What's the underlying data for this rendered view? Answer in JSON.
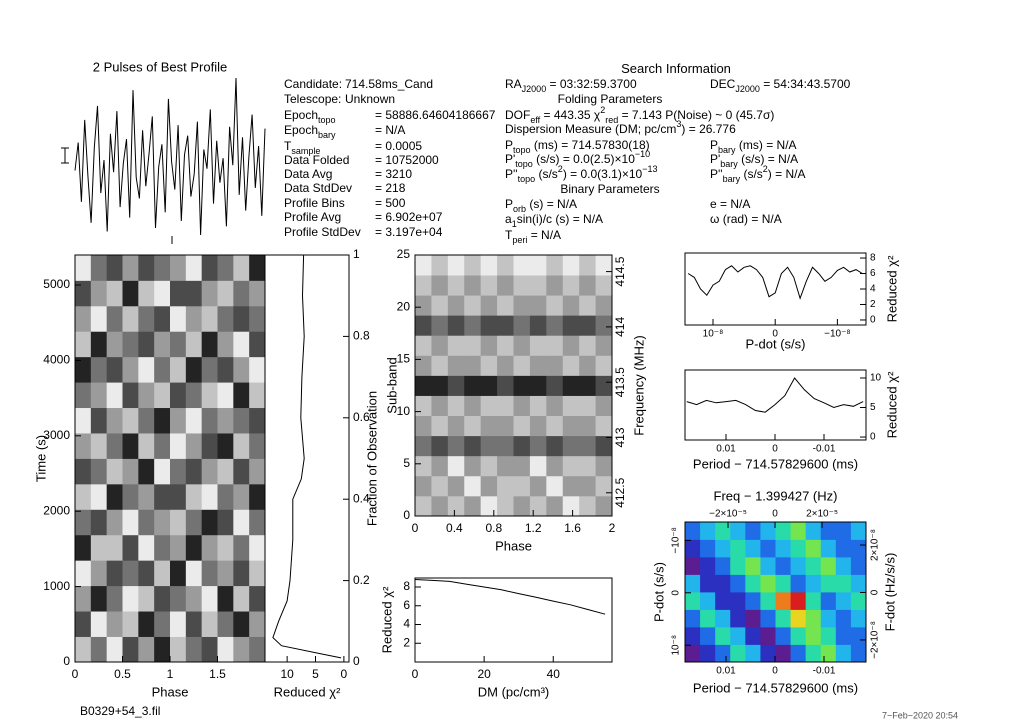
{
  "info": {
    "left": [
      {
        "segments": [
          {
            "text": "Candidate:"
          }
        ],
        "value": "714.58ms_Cand"
      },
      {
        "segments": [
          {
            "text": "Telescope:"
          }
        ],
        "value": "Unknown"
      },
      {
        "segments": [
          {
            "text": "Epoch"
          },
          {
            "sub": "topo"
          }
        ],
        "value": "= 58886.64604186667"
      },
      {
        "segments": [
          {
            "text": "Epoch"
          },
          {
            "sub": "bary"
          }
        ],
        "value": "= N/A"
      },
      {
        "segments": [
          {
            "text": "T"
          },
          {
            "sub": "sample"
          }
        ],
        "value": "= 0.0005"
      },
      {
        "segments": [
          {
            "text": "Data Folded"
          }
        ],
        "value": "= 10752000"
      },
      {
        "segments": [
          {
            "text": "Data Avg"
          }
        ],
        "value": "= 3210"
      },
      {
        "segments": [
          {
            "text": "Data StdDev"
          }
        ],
        "value": "= 218"
      },
      {
        "segments": [
          {
            "text": "Profile Bins"
          }
        ],
        "value": "= 500"
      },
      {
        "segments": [
          {
            "text": "Profile Avg"
          }
        ],
        "value": "= 6.902e+07"
      },
      {
        "segments": [
          {
            "text": "Profile StdDev"
          }
        ],
        "value": "= 3.197e+04"
      }
    ],
    "search": [
      {
        "segments": [
          {
            "text": "Search Information"
          }
        ]
      },
      {
        "segments": [
          {
            "text": "RA"
          },
          {
            "sub": "J2000"
          },
          {
            "text": " = 03:32:59.3700"
          }
        ]
      },
      {
        "segments": [
          {
            "text": "DEC"
          },
          {
            "sub": "J2000"
          },
          {
            "text": " = 54:34:43.5700"
          }
        ]
      },
      {
        "segments": [
          {
            "text": "Folding Parameters"
          }
        ]
      },
      {
        "segments": [
          {
            "text": "DOF"
          },
          {
            "sub": "eff"
          },
          {
            "text": " = 443.35  χ"
          },
          {
            "sup": "2"
          },
          {
            "sub": "red"
          },
          {
            "text": " = 7.143  P(Noise) ~ 0   (45.7σ)"
          }
        ]
      },
      {
        "segments": [
          {
            "text": "Dispersion Measure (DM; pc/cm"
          },
          {
            "sup": "3"
          },
          {
            "text": ") = 26.776"
          }
        ]
      },
      {
        "segments": [
          {
            "text": "P"
          },
          {
            "sub": "topo"
          },
          {
            "text": " (ms) = 714.57830(18)"
          }
        ]
      },
      {
        "segments": [
          {
            "text": "P"
          },
          {
            "sub": "bary"
          },
          {
            "text": " (ms) = N/A"
          }
        ]
      },
      {
        "segments": [
          {
            "text": "P'"
          },
          {
            "sub": "topo"
          },
          {
            "text": " (s/s) = 0.0(2.5)×10"
          },
          {
            "sup": "−10"
          }
        ]
      },
      {
        "segments": [
          {
            "text": "P'"
          },
          {
            "sub": "bary"
          },
          {
            "text": " (s/s) = N/A"
          }
        ]
      },
      {
        "segments": [
          {
            "text": "P''"
          },
          {
            "sub": "topo"
          },
          {
            "text": " (s/s"
          },
          {
            "sup": "2"
          },
          {
            "text": ") = 0.0(3.1)×10"
          },
          {
            "sup": "−13"
          }
        ]
      },
      {
        "segments": [
          {
            "text": "P''"
          },
          {
            "sub": "bary"
          },
          {
            "text": " (s/s"
          },
          {
            "sup": "2"
          },
          {
            "text": ") = N/A"
          }
        ]
      },
      {
        "segments": [
          {
            "text": "Binary Parameters"
          }
        ]
      },
      {
        "segments": [
          {
            "text": "P"
          },
          {
            "sub": "orb"
          },
          {
            "text": " (s) = N/A"
          }
        ]
      },
      {
        "segments": [
          {
            "text": "e = N/A"
          }
        ]
      },
      {
        "segments": [
          {
            "text": "a"
          },
          {
            "sub": "1"
          },
          {
            "text": "sin(i)/c (s) = N/A"
          }
        ]
      },
      {
        "segments": [
          {
            "text": "ω (rad) = N/A"
          }
        ]
      },
      {
        "segments": [
          {
            "text": "T"
          },
          {
            "sub": "peri"
          },
          {
            "text": " = N/A"
          }
        ]
      }
    ],
    "filename": "B0329+54_3.fil",
    "date": "7−Feb−2020 20:54"
  },
  "chart_data": [
    {
      "type": "line",
      "title": "2 Pulses of Best Profile",
      "color": "#000000",
      "values": [
        0.5,
        2.1,
        -1.3,
        3.4,
        0.2,
        -2.5,
        1.8,
        4.2,
        -0.8,
        1.1,
        -3.0,
        2.6,
        0.4,
        3.9,
        -1.6,
        0.9,
        2.3,
        -2.2,
        5.1,
        0.1,
        -1.1,
        2.8,
        -0.4,
        1.5,
        3.6,
        -2.8,
        0.7,
        2.0,
        -1.9,
        4.6,
        1.0,
        -0.6,
        3.1,
        -2.4,
        1.4,
        2.5,
        -1.0,
        0.3,
        3.3,
        -3.2,
        1.7,
        0.6,
        4.0,
        -1.4,
        2.2,
        -0.2,
        1.2,
        -2.7,
        3.0,
        0.8,
        5.8,
        -0.9,
        2.4,
        -1.8,
        1.3,
        3.7,
        -0.5,
        1.9,
        -2.1,
        2.9
      ]
    },
    {
      "type": "heatmap",
      "xlabel": "Phase",
      "ylabel": "Time (s)",
      "colormap": "gray",
      "xlim": [
        0,
        2
      ],
      "xticks": [
        0,
        0.5,
        1,
        1.5
      ],
      "ylim": [
        0,
        5398
      ],
      "yticks": [
        0,
        1000,
        2000,
        3000,
        4000,
        5000
      ],
      "z": [
        [
          3,
          5,
          2,
          6,
          4,
          7,
          3,
          5,
          6,
          2,
          4,
          5
        ],
        [
          6,
          2,
          4,
          3,
          7,
          5,
          2,
          6,
          3,
          5,
          7,
          4
        ],
        [
          4,
          7,
          5,
          2,
          3,
          6,
          5,
          4,
          2,
          7,
          3,
          6
        ],
        [
          2,
          4,
          6,
          5,
          6,
          3,
          7,
          2,
          5,
          4,
          6,
          3
        ],
        [
          7,
          3,
          3,
          6,
          2,
          5,
          4,
          7,
          4,
          3,
          5,
          2
        ],
        [
          5,
          6,
          4,
          2,
          5,
          4,
          3,
          5,
          7,
          6,
          2,
          5
        ],
        [
          3,
          2,
          7,
          5,
          4,
          6,
          6,
          3,
          2,
          5,
          4,
          7
        ],
        [
          6,
          5,
          3,
          4,
          7,
          2,
          5,
          6,
          4,
          3,
          6,
          4
        ],
        [
          4,
          3,
          5,
          7,
          3,
          5,
          2,
          4,
          6,
          7,
          3,
          5
        ],
        [
          2,
          6,
          4,
          3,
          5,
          7,
          4,
          2,
          5,
          4,
          5,
          6
        ],
        [
          5,
          4,
          2,
          6,
          4,
          3,
          6,
          5,
          3,
          2,
          7,
          3
        ],
        [
          7,
          5,
          6,
          4,
          2,
          5,
          3,
          7,
          5,
          6,
          4,
          2
        ],
        [
          3,
          7,
          4,
          5,
          6,
          4,
          5,
          3,
          7,
          4,
          2,
          6
        ],
        [
          4,
          2,
          5,
          3,
          5,
          6,
          2,
          4,
          3,
          5,
          6,
          5
        ],
        [
          6,
          4,
          3,
          7,
          3,
          2,
          6,
          6,
          4,
          3,
          5,
          4
        ],
        [
          2,
          5,
          6,
          4,
          6,
          5,
          4,
          2,
          6,
          5,
          3,
          7
        ]
      ]
    },
    {
      "type": "line",
      "orientation": "horizontal",
      "xlabel": "Reduced χ²",
      "ylabel": "Fraction of Observation",
      "y_side": "right",
      "color": "#000000",
      "xlim": [
        13.9,
        -0.9
      ],
      "xticks": [
        10,
        5,
        0
      ],
      "ylim": [
        0,
        1
      ],
      "yticks": [
        0,
        0.2,
        0.4,
        0.6,
        0.8,
        1
      ],
      "y": [
        0.01,
        0.02,
        0.04,
        0.06,
        0.1,
        0.15,
        0.2,
        0.3,
        0.4,
        0.45,
        0.5,
        0.6,
        0.7,
        0.8,
        0.9,
        1.0
      ],
      "values": [
        0.5,
        4,
        11,
        12.5,
        11.5,
        10,
        9.5,
        9,
        9,
        7.5,
        7,
        7.6,
        7.4,
        7,
        7.3,
        7.1
      ]
    },
    {
      "type": "heatmap",
      "xlabel": "Phase",
      "ylabel": "Sub-band",
      "y2label": "Frequency (MHz)",
      "colormap": "gray",
      "xlim": [
        0,
        2
      ],
      "xticks": [
        0,
        0.4,
        0.8,
        1.2,
        1.6,
        2
      ],
      "ylim": [
        0,
        25
      ],
      "yticks": [
        0,
        5,
        10,
        15,
        20,
        25
      ],
      "y2lim": [
        412.29,
        414.65
      ],
      "y2ticks": [
        412.5,
        413,
        413.5,
        414,
        414.5
      ],
      "z": [
        [
          4,
          5,
          4,
          5,
          3,
          4,
          5,
          4,
          5,
          3,
          4,
          5
        ],
        [
          5,
          4,
          5,
          3,
          5,
          4,
          4,
          5,
          3,
          5,
          5,
          4
        ],
        [
          4,
          5,
          3,
          5,
          4,
          5,
          5,
          3,
          5,
          4,
          4,
          5
        ],
        [
          6,
          7,
          6,
          7,
          6,
          6,
          7,
          6,
          7,
          6,
          6,
          7
        ],
        [
          5,
          4,
          5,
          4,
          5,
          5,
          4,
          5,
          4,
          5,
          5,
          4
        ],
        [
          4,
          5,
          4,
          5,
          4,
          4,
          5,
          4,
          5,
          4,
          4,
          5
        ],
        [
          8,
          8,
          7,
          8,
          8,
          7,
          8,
          8,
          7,
          8,
          8,
          7
        ],
        [
          5,
          4,
          5,
          5,
          4,
          5,
          4,
          5,
          5,
          4,
          5,
          4
        ],
        [
          4,
          5,
          4,
          4,
          5,
          4,
          5,
          4,
          4,
          5,
          4,
          5
        ],
        [
          7,
          6,
          7,
          6,
          7,
          7,
          6,
          7,
          6,
          7,
          7,
          6
        ],
        [
          5,
          4,
          5,
          4,
          5,
          4,
          5,
          5,
          4,
          5,
          4,
          5
        ],
        [
          4,
          5,
          4,
          5,
          4,
          5,
          4,
          4,
          5,
          4,
          5,
          4
        ],
        [
          3,
          4,
          3,
          4,
          3,
          4,
          3,
          3,
          4,
          3,
          4,
          3
        ]
      ]
    },
    {
      "type": "line",
      "xlabel": "DM (pc/cm³)",
      "ylabel": "Reduced χ²",
      "color": "#000000",
      "xlim": [
        0,
        57
      ],
      "xticks": [
        0,
        20,
        40
      ],
      "ylim": [
        0,
        8.96
      ],
      "yticks": [
        2,
        4,
        6,
        8
      ],
      "x": [
        0,
        5,
        10,
        15,
        20,
        25,
        30,
        35,
        40,
        45,
        50,
        55
      ],
      "values": [
        8.8,
        8.7,
        8.6,
        8.3,
        8.0,
        7.7,
        7.3,
        6.9,
        6.5,
        6.1,
        5.6,
        5.1
      ]
    },
    {
      "type": "line",
      "xlabel": "P-dot (s/s)",
      "ylabel": "Reduced χ²",
      "y_side": "right",
      "color": "#000000",
      "xlim": [
        1.45e-08,
        -1.46e-08
      ],
      "xticks": [
        {
          "value": 1e-08,
          "label": "10⁻⁸"
        },
        0,
        {
          "value": -1e-08,
          "label": "−10⁻⁸"
        }
      ],
      "ylim": [
        -0.65,
        8.65
      ],
      "yticks": [
        0,
        2,
        4,
        6,
        8
      ],
      "x": [
        -1.4e-08,
        -1.3e-08,
        -1.2e-08,
        -1.1e-08,
        -1e-08,
        -9e-09,
        -8e-09,
        -7e-09,
        -6e-09,
        -5e-09,
        -4e-09,
        -3e-09,
        -2e-09,
        -1e-09,
        0,
        1e-09,
        2e-09,
        3e-09,
        4e-09,
        5e-09,
        6e-09,
        7e-09,
        8e-09,
        9e-09,
        1e-08,
        1.1e-08,
        1.2e-08,
        1.3e-08,
        1.4e-08
      ],
      "values": [
        6.0,
        6.5,
        6.2,
        6.8,
        6.4,
        5.5,
        5.0,
        6.0,
        6.8,
        5.0,
        2.8,
        5.5,
        6.8,
        6.0,
        3.5,
        3.0,
        5.5,
        6.5,
        7.0,
        6.8,
        6.2,
        7.0,
        6.5,
        5.0,
        4.5,
        3.2,
        4.0,
        5.5,
        6.0
      ]
    },
    {
      "type": "line",
      "xlabel": "Period − 714.57829600 (ms)",
      "ylabel": "Reduced χ²",
      "y_side": "right",
      "color": "#000000",
      "xlim": [
        0.01837,
        -0.01857
      ],
      "xticks": [
        0.01,
        0,
        -0.01
      ],
      "ylim": [
        -0.5,
        11.35
      ],
      "yticks": [
        0,
        5,
        10
      ],
      "x": [
        -0.018,
        -0.016,
        -0.014,
        -0.012,
        -0.01,
        -0.008,
        -0.006,
        -0.004,
        -0.002,
        0,
        0.002,
        0.004,
        0.006,
        0.008,
        0.01,
        0.012,
        0.014,
        0.016,
        0.018
      ],
      "values": [
        6.0,
        5.2,
        5.5,
        5.0,
        5.8,
        6.5,
        8.0,
        10.0,
        7.0,
        5.5,
        4.2,
        4.5,
        5.5,
        6.2,
        6.0,
        5.8,
        6.2,
        5.5,
        6.0
      ]
    },
    {
      "type": "heatmap",
      "xlabel": "Period − 714.57829600 (ms)",
      "x2label": "Freq − 1.399427 (Hz)",
      "ylabel": "P-dot (s/s)",
      "y2label": "F-dot (Hz/s/s)",
      "colormap": [
        "#5b1d8f",
        "#2433c8",
        "#1f7ef0",
        "#22d6e8",
        "#2fe06a",
        "#e6ee22",
        "#f08a1c",
        "#d81e1e"
      ],
      "xlim": [
        0.01837,
        -0.01857
      ],
      "xticks": [
        0.01,
        0,
        -0.01
      ],
      "x2lim": [
        -3.83e-05,
        3.87e-05
      ],
      "x2ticks": [
        {
          "value": -2e-05,
          "label": "−2×10⁻⁵"
        },
        0,
        {
          "value": 2e-05,
          "label": "2×10⁻⁵"
        }
      ],
      "ylim": [
        1.32e-08,
        -1.35e-08
      ],
      "yticks": [
        {
          "value": 1e-08,
          "label": "10⁻⁸"
        },
        0,
        {
          "value": -1e-08,
          "label": "−10⁻⁸"
        }
      ],
      "y2lim": [
        -2.93e-08,
        2.97e-08
      ],
      "y2ticks": [
        {
          "value": -2e-08,
          "label": "−2×10⁻⁸"
        },
        0,
        {
          "value": 2e-08,
          "label": "2×10⁻⁸"
        }
      ],
      "z": [
        [
          2,
          3,
          4,
          6,
          5,
          3,
          2,
          4,
          6,
          7,
          5,
          4
        ],
        [
          3,
          4,
          6,
          5,
          3,
          2,
          4,
          6,
          7,
          6,
          4,
          4
        ],
        [
          4,
          6,
          5,
          3,
          2,
          4,
          6,
          8,
          7,
          5,
          4,
          5
        ],
        [
          6,
          5,
          3,
          3,
          4,
          6,
          9,
          10,
          6,
          4,
          5,
          6
        ],
        [
          5,
          3,
          3,
          4,
          6,
          7,
          6,
          4,
          5,
          6,
          6,
          5
        ],
        [
          2,
          3,
          4,
          6,
          7,
          5,
          4,
          5,
          6,
          7,
          5,
          4
        ],
        [
          3,
          4,
          5,
          6,
          5,
          4,
          5,
          6,
          7,
          5,
          4,
          4
        ],
        [
          4,
          5,
          6,
          5,
          4,
          5,
          6,
          7,
          5,
          4,
          4,
          5
        ]
      ]
    }
  ]
}
